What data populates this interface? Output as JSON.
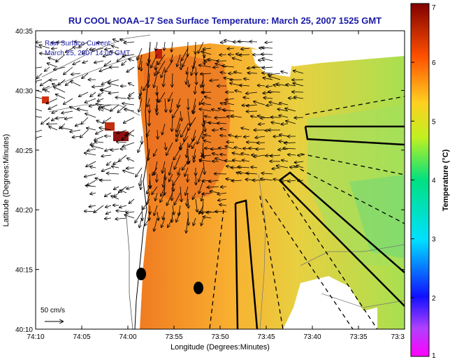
{
  "chart_data": {
    "type": "heatmap",
    "title": "RU COOL  NOAA–17  Sea Surface Temperature:  March 25, 2007 1525 GMT",
    "xlabel": "Longitude (Degrees:Minutes)",
    "ylabel": "Latitude (Degrees:Minutes)",
    "x_ticks": [
      "74:10",
      "74:05",
      "74:00",
      "73:55",
      "73:50",
      "73:45",
      "73:40",
      "73:35",
      "73:3"
    ],
    "y_ticks": [
      "40:10",
      "40:15",
      "40:20",
      "40:25",
      "40:30",
      "40:35"
    ],
    "xlim_minutes_west": [
      10,
      30
    ],
    "ylim_minutes_north": [
      10,
      35
    ],
    "colorbar": {
      "label": "Temperature (°C)",
      "range": [
        1,
        7
      ],
      "ticks": [
        "1",
        "2",
        "3",
        "4",
        "5",
        "6",
        "7"
      ]
    },
    "annotations": {
      "current_label_1": "Raw Surface Current:",
      "current_label_2": "March 25, 2007 14:00 GMT",
      "scale_label": "50 cm/s"
    },
    "grid": false
  }
}
